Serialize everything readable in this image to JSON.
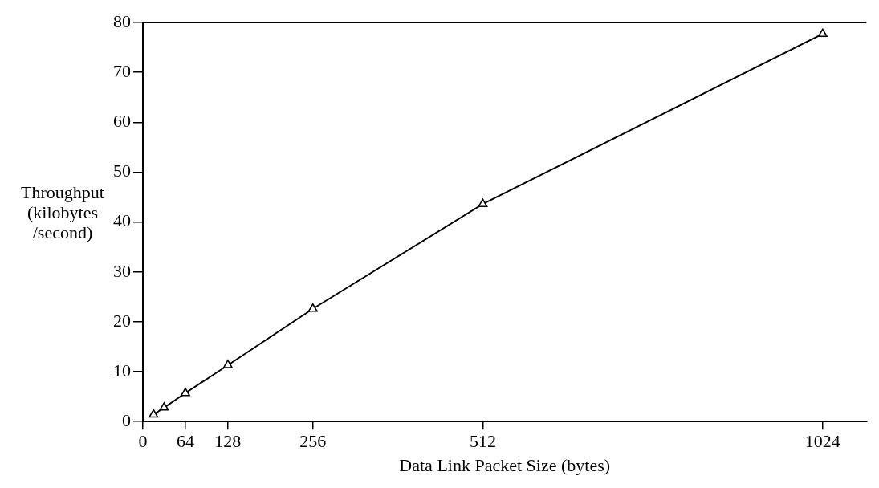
{
  "chart_data": {
    "type": "line",
    "xlabel": "Data Link Packet Size (bytes)",
    "ylabel": "Throughput (kilobytes /second)",
    "x": [
      16,
      32,
      64,
      128,
      256,
      512,
      1024
    ],
    "series": [
      {
        "color": "#000000",
        "values": [
          1.4,
          2.8,
          5.7,
          11.3,
          22.6,
          43.6,
          77.7
        ]
      }
    ],
    "xlim": [
      0,
      1090
    ],
    "xticks": [
      0,
      64,
      128,
      256,
      512,
      1024
    ],
    "ylim": [
      0,
      80
    ],
    "yticks": [
      0,
      10,
      20,
      30,
      40,
      50,
      60,
      70,
      80
    ],
    "grid": false,
    "legend": false,
    "marker": "triangle",
    "line_style": "solid"
  }
}
